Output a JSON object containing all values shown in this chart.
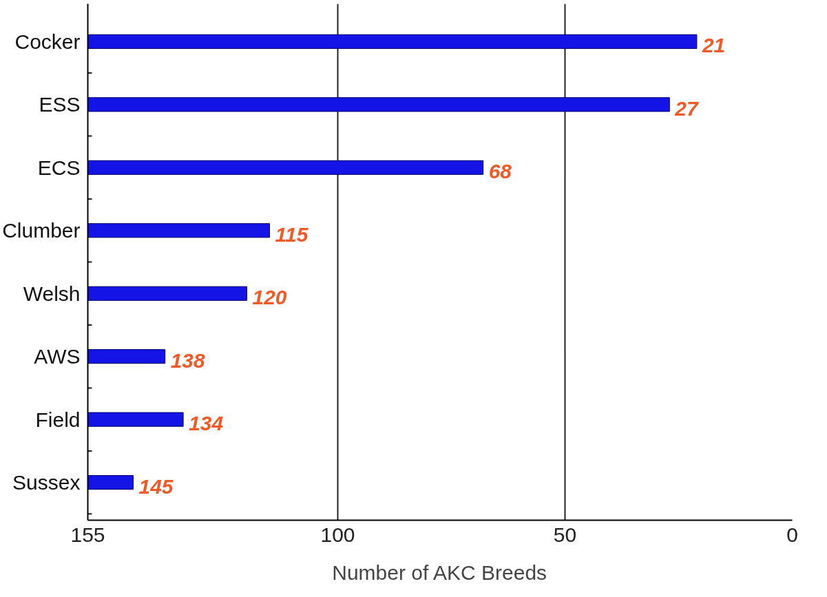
{
  "chart_data": {
    "type": "bar",
    "orientation": "horizontal",
    "xlabel": "Number of AKC Breeds",
    "categories": [
      "Cocker",
      "ESS",
      "ECS",
      "Clumber",
      "Welsh",
      "AWS",
      "Field",
      "Sussex"
    ],
    "base": [
      155,
      155,
      155,
      155,
      155,
      155,
      155,
      155
    ],
    "values": [
      -134,
      -128,
      -87,
      -40,
      -35,
      -17,
      -21,
      -10
    ],
    "value_labels": [
      "21",
      "27",
      "68",
      "115",
      "120",
      "138",
      "134",
      "145"
    ],
    "color": "#1414e6",
    "xlim": [
      155,
      0
    ],
    "xticks": [
      155,
      100,
      50,
      0
    ],
    "grid": "x"
  }
}
